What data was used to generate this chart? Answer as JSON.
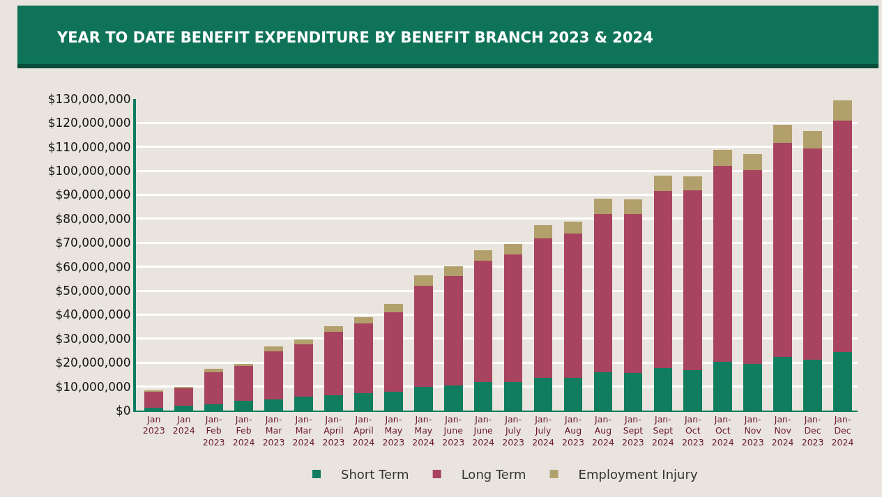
{
  "chart_data": {
    "type": "bar",
    "title": "YEAR TO DATE BENEFIT EXPENDITURE BY BENEFIT BRANCH 2023 & 2024",
    "stacked": true,
    "grid": "y",
    "legend": "bottom",
    "categories": [
      "Jan 2023",
      "Jan 2024",
      "Jan-Feb 2023",
      "Jan-Feb 2024",
      "Jan-Mar 2023",
      "Jan-Mar 2024",
      "Jan-April 2023",
      "Jan-April 2024",
      "Jan-May 2023",
      "Jan-May 2024",
      "Jan-June 2023",
      "Jan-June 2024",
      "Jan-July 2023",
      "Jan-July 2024",
      "Jan-Aug 2023",
      "Jan-Aug 2024",
      "Jan-Sept 2023",
      "Jan-Sept 2024",
      "Jan-Oct 2023",
      "Jan-Oct 2024",
      "Jan-Nov 2023",
      "Jan-Nov 2024",
      "Jan-Dec 2023",
      "Jan-Dec 2024"
    ],
    "series": [
      {
        "name": "Short Term",
        "color": "#0f7d5e",
        "values": [
          1200000,
          1900000,
          2600000,
          4000000,
          4600000,
          5700000,
          6300000,
          7400000,
          7900000,
          9800000,
          10500000,
          12000000,
          11800000,
          13700000,
          13700000,
          15900000,
          15700000,
          17700000,
          17000000,
          20300000,
          19400000,
          22500000,
          21200000,
          24500000
        ]
      },
      {
        "name": "Long Term",
        "color": "#a8445f",
        "values": [
          6600000,
          7500000,
          13300000,
          14500000,
          20100000,
          21900000,
          26500000,
          28900000,
          33200000,
          42300000,
          45500000,
          50600000,
          53300000,
          58000000,
          60100000,
          66000000,
          66200000,
          73800000,
          74800000,
          81800000,
          80900000,
          89200000,
          88100000,
          96600000
        ]
      },
      {
        "name": "Employment Injury",
        "color": "#b2a06c",
        "values": [
          600000,
          500000,
          1600000,
          900000,
          2000000,
          2100000,
          2400000,
          2800000,
          3500000,
          4400000,
          4300000,
          4200000,
          4400000,
          5600000,
          5100000,
          6600000,
          6100000,
          6400000,
          5800000,
          6800000,
          6800000,
          7500000,
          7300000,
          8300000
        ]
      }
    ],
    "ylim": [
      0,
      130000000
    ],
    "yticks": [
      {
        "value": 0,
        "label": "$0"
      },
      {
        "value": 10000000,
        "label": "$10,000,000"
      },
      {
        "value": 20000000,
        "label": "$20,000,000"
      },
      {
        "value": 30000000,
        "label": "$30,000,000"
      },
      {
        "value": 40000000,
        "label": "$40,000,000"
      },
      {
        "value": 50000000,
        "label": "$50,000,000"
      },
      {
        "value": 60000000,
        "label": "$60,000,000"
      },
      {
        "value": 70000000,
        "label": "$70,000,000"
      },
      {
        "value": 80000000,
        "label": "$80,000,000"
      },
      {
        "value": 90000000,
        "label": "$90,000,000"
      },
      {
        "value": 100000000,
        "label": "$100,000,000"
      },
      {
        "value": 110000000,
        "label": "$110,000,000"
      },
      {
        "value": 120000000,
        "label": "$120,000,000"
      },
      {
        "value": 130000000,
        "label": "$130,000,000"
      }
    ]
  }
}
